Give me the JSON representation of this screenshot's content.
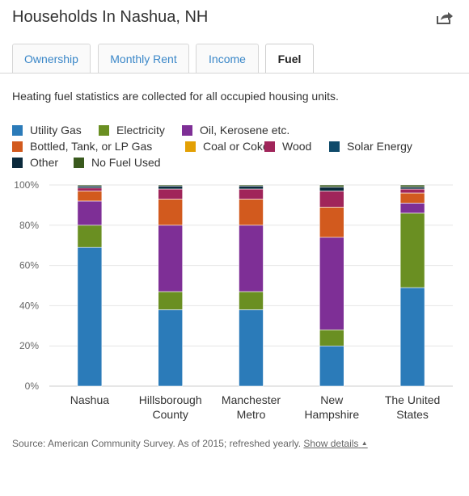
{
  "header": {
    "title": "Households In Nashua, NH",
    "share_icon": "share-icon"
  },
  "tabs": [
    {
      "label": "Ownership",
      "active": false
    },
    {
      "label": "Monthly Rent",
      "active": false
    },
    {
      "label": "Income",
      "active": false
    },
    {
      "label": "Fuel",
      "active": true
    }
  ],
  "description": "Heating fuel statistics are collected for all occupied housing units.",
  "footer": {
    "source": "Source: American Community Survey. As of 2015; refreshed yearly.",
    "link": "Show details",
    "link_icon": "caret-up-icon"
  },
  "chart_data": {
    "type": "bar",
    "stacked": true,
    "categories": [
      "Nashua",
      "Hillsborough County",
      "Manchester Metro",
      "New Hampshire",
      "The United States"
    ],
    "category_lines": [
      [
        "Nashua"
      ],
      [
        "Hillsborough",
        "County"
      ],
      [
        "Manchester",
        "Metro"
      ],
      [
        "New",
        "Hampshire"
      ],
      [
        "The United",
        "States"
      ]
    ],
    "ylim": [
      0,
      100
    ],
    "yticks": [
      0,
      20,
      40,
      60,
      80,
      100
    ],
    "ytick_labels": [
      "0%",
      "20%",
      "40%",
      "60%",
      "80%",
      "100%"
    ],
    "legend_position": "top",
    "series": [
      {
        "name": "Utility Gas",
        "color": "#2b7bb9",
        "values": [
          69,
          38,
          38,
          20,
          49
        ]
      },
      {
        "name": "Electricity",
        "color": "#6a8f22",
        "values": [
          11,
          9,
          9,
          8,
          37
        ]
      },
      {
        "name": "Oil, Kerosene etc.",
        "color": "#7e2f96",
        "values": [
          12,
          33,
          33,
          46,
          5
        ]
      },
      {
        "name": "Bottled, Tank, or LP Gas",
        "color": "#d25a1e",
        "values": [
          5,
          13,
          13,
          15,
          5
        ]
      },
      {
        "name": "Coal or Coke",
        "color": "#e3a004",
        "values": [
          0,
          0,
          0,
          0,
          0
        ]
      },
      {
        "name": "Wood",
        "color": "#a0255a",
        "values": [
          1.5,
          5,
          5,
          8,
          2
        ]
      },
      {
        "name": "Solar Energy",
        "color": "#0f4a6a",
        "values": [
          0,
          0,
          0,
          0,
          0
        ]
      },
      {
        "name": "Other",
        "color": "#0b2a3c",
        "values": [
          1,
          1.5,
          1.5,
          2,
          1
        ]
      },
      {
        "name": "No Fuel Used",
        "color": "#3a5a1e",
        "values": [
          0.5,
          0.5,
          0.5,
          1,
          1
        ]
      }
    ]
  }
}
